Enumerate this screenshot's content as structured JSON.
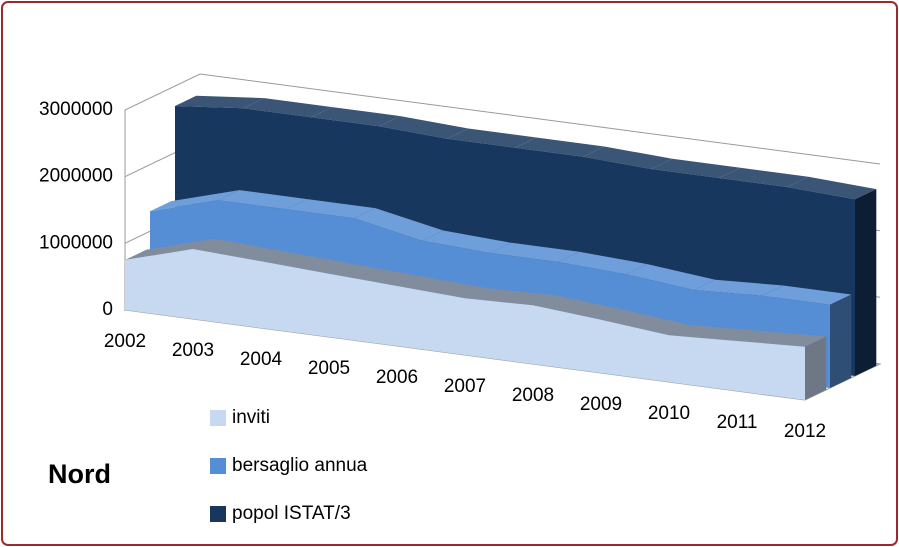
{
  "chart_data": {
    "type": "area3d",
    "title": "Nord",
    "categories": [
      "2002",
      "2003",
      "2004",
      "2005",
      "2006",
      "2007",
      "2008",
      "2009",
      "2010",
      "2011",
      "2012"
    ],
    "series": [
      {
        "name": "inviti",
        "color": "#c6d9f1",
        "values": [
          750000,
          1050000,
          1000000,
          950000,
          900000,
          850000,
          880000,
          800000,
          700000,
          750000,
          800000
        ]
      },
      {
        "name": "bersaglio annua",
        "color": "#558ed5",
        "values": [
          1300000,
          1600000,
          1600000,
          1600000,
          1400000,
          1350000,
          1350000,
          1300000,
          1200000,
          1250000,
          1250000
        ]
      },
      {
        "name": "popol ISTAT/3",
        "color": "#17375e",
        "values": [
          2700000,
          2800000,
          2800000,
          2800000,
          2750000,
          2750000,
          2750000,
          2700000,
          2700000,
          2700000,
          2650000
        ]
      }
    ],
    "ylim": [
      0,
      3000000
    ],
    "yticks": [
      0,
      1000000,
      2000000,
      3000000
    ],
    "grid": true,
    "legend": "bottom-left"
  }
}
